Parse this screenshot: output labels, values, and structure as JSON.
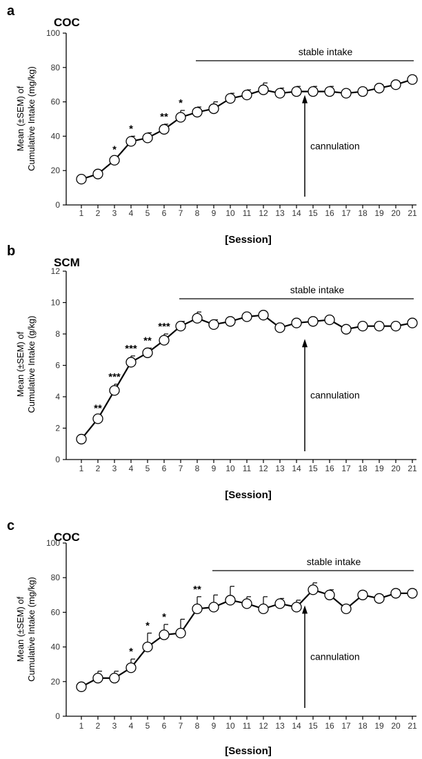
{
  "chart_data": [
    {
      "type": "line",
      "panel_letter": "a",
      "drug": "COC",
      "ylabel": [
        "Mean (±SEM) of",
        "Cumulative Intake (mg/kg)"
      ],
      "xlabel": "[Session]",
      "ylim": [
        0,
        100
      ],
      "yticks": [
        0,
        20,
        40,
        60,
        80,
        100
      ],
      "x": [
        1,
        2,
        3,
        4,
        5,
        6,
        7,
        8,
        9,
        10,
        11,
        12,
        13,
        14,
        15,
        16,
        17,
        18,
        19,
        20,
        21
      ],
      "values": [
        15,
        18,
        26,
        37,
        39,
        44,
        51,
        54,
        56,
        62,
        64,
        67,
        65,
        66,
        66,
        66,
        65,
        66,
        68,
        70,
        73
      ],
      "sem": [
        0,
        1,
        2,
        3,
        3,
        3,
        4,
        3,
        4,
        3,
        3,
        4,
        3,
        3,
        3,
        3,
        2,
        2,
        2,
        2,
        2
      ],
      "significance": [
        {
          "x": 3,
          "label": "*"
        },
        {
          "x": 4,
          "label": "*"
        },
        {
          "x": 6,
          "label": "**"
        },
        {
          "x": 7,
          "label": "*"
        }
      ],
      "stable_intake": {
        "label": "stable intake",
        "from": 8,
        "to": 21
      },
      "cannulation": {
        "label": "cannulation",
        "x": 14.5
      }
    },
    {
      "type": "line",
      "panel_letter": "b",
      "drug": "SCM",
      "ylabel": [
        "Mean (±SEM) of",
        "Cumulative Intake (g/kg)"
      ],
      "xlabel": "[Session]",
      "ylim": [
        0,
        12
      ],
      "yticks": [
        0,
        2,
        4,
        6,
        8,
        10,
        12
      ],
      "x": [
        1,
        2,
        3,
        4,
        5,
        6,
        7,
        8,
        9,
        10,
        11,
        12,
        13,
        14,
        15,
        16,
        17,
        18,
        19,
        20,
        21
      ],
      "values": [
        1.3,
        2.6,
        4.4,
        6.2,
        6.8,
        7.6,
        8.5,
        9.0,
        8.6,
        8.8,
        9.1,
        9.2,
        8.4,
        8.7,
        8.8,
        8.9,
        8.3,
        8.5,
        8.5,
        8.5,
        8.7
      ],
      "sem": [
        0,
        0.2,
        0.4,
        0.4,
        0.3,
        0.4,
        0.3,
        0.4,
        0.3,
        0.2,
        0.2,
        0.2,
        0.2,
        0.2,
        0.2,
        0.2,
        0.2,
        0.2,
        0.2,
        0.2,
        0.2
      ],
      "significance": [
        {
          "x": 2,
          "label": "**"
        },
        {
          "x": 3,
          "label": "***"
        },
        {
          "x": 4,
          "label": "***"
        },
        {
          "x": 5,
          "label": "**"
        },
        {
          "x": 6,
          "label": "***"
        }
      ],
      "stable_intake": {
        "label": "stable intake",
        "from": 7,
        "to": 21
      },
      "cannulation": {
        "label": "cannulation",
        "x": 14.5
      }
    },
    {
      "type": "line",
      "panel_letter": "c",
      "drug": "COC",
      "ylabel": [
        "Mean (±SEM) of",
        "Cumulative Intake (mg/kg)"
      ],
      "xlabel": "[Session]",
      "ylim": [
        0,
        100
      ],
      "yticks": [
        0,
        20,
        40,
        60,
        80,
        100
      ],
      "x": [
        1,
        2,
        3,
        4,
        5,
        6,
        7,
        8,
        9,
        10,
        11,
        12,
        13,
        14,
        15,
        16,
        17,
        18,
        19,
        20,
        21
      ],
      "values": [
        17,
        22,
        22,
        28,
        40,
        47,
        48,
        62,
        63,
        67,
        65,
        62,
        65,
        63,
        73,
        70,
        62,
        70,
        68,
        71,
        71
      ],
      "sem": [
        1,
        4,
        4,
        5,
        8,
        6,
        8,
        7,
        7,
        8,
        4,
        7,
        3,
        4,
        4,
        3,
        2,
        2,
        2,
        2,
        2
      ],
      "significance": [
        {
          "x": 4,
          "label": "*"
        },
        {
          "x": 5,
          "label": "*"
        },
        {
          "x": 6,
          "label": "*"
        },
        {
          "x": 8,
          "label": "**"
        }
      ],
      "stable_intake": {
        "label": "stable intake",
        "from": 9,
        "to": 21
      },
      "cannulation": {
        "label": "cannulation",
        "x": 14.5
      }
    }
  ]
}
